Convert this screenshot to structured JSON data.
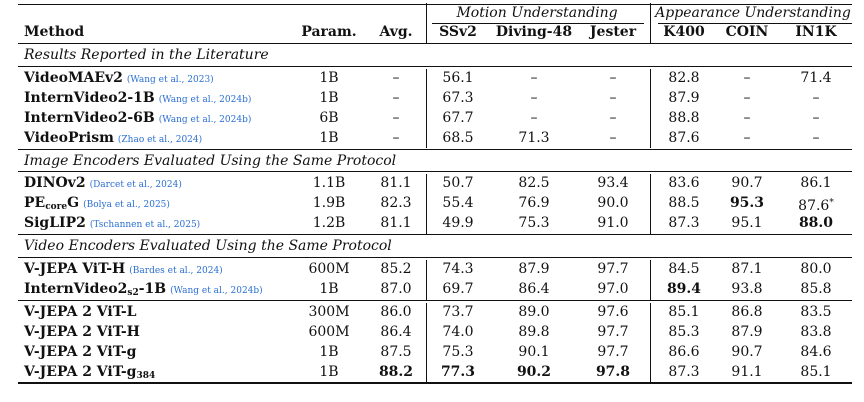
{
  "header": {
    "group_motion": "Motion Understanding",
    "group_appearance": "Appearance Understanding",
    "columns": [
      "Method",
      "Param.",
      "Avg.",
      "SSv2",
      "Diving-48",
      "Jester",
      "K400",
      "COIN",
      "IN1K"
    ]
  },
  "sections": [
    {
      "title": "Results Reported in the Literature",
      "rows": [
        {
          "name": "VideoMAEv2",
          "cite": "(Wang et al., 2023)",
          "cells": [
            "1B",
            "–",
            "56.1",
            "–",
            "–",
            "82.8",
            "–",
            "71.4"
          ]
        },
        {
          "name": "InternVideo2-1B",
          "cite": "(Wang et al., 2024b)",
          "cells": [
            "1B",
            "–",
            "67.3",
            "–",
            "–",
            "87.9",
            "–",
            "–"
          ]
        },
        {
          "name": "InternVideo2-6B",
          "cite": "(Wang et al., 2024b)",
          "cells": [
            "6B",
            "–",
            "67.7",
            "–",
            "–",
            "88.8",
            "–",
            "–"
          ]
        },
        {
          "name": "VideoPrism",
          "cite": "(Zhao et al., 2024)",
          "cells": [
            "1B",
            "–",
            "68.5",
            "71.3",
            "–",
            "87.6",
            "–",
            "–"
          ]
        }
      ]
    },
    {
      "title": "Image Encoders Evaluated Using the Same Protocol",
      "rows": [
        {
          "name": "DINOv2",
          "cite": "(Darcet et al., 2024)",
          "cells": [
            "1.1B",
            "81.1",
            "50.7",
            "82.5",
            "93.4",
            "83.6",
            "90.7",
            "86.1"
          ]
        },
        {
          "name": "PE",
          "sub": "core",
          "name_after": "G",
          "cite": "(Bolya et al., 2025)",
          "cells": [
            "1.9B",
            "82.3",
            "55.4",
            "76.9",
            "90.0",
            "88.5",
            "95.3",
            "87.6"
          ],
          "sup8": "*"
        },
        {
          "name": "SigLIP2",
          "cite": "(Tschannen et al., 2025)",
          "cells": [
            "1.2B",
            "81.1",
            "49.9",
            "75.3",
            "91.0",
            "87.3",
            "95.1",
            "88.0"
          ]
        }
      ]
    },
    {
      "title": "Video Encoders Evaluated Using the Same Protocol",
      "rows": [
        {
          "name": "V-JEPA ViT-H",
          "cite": "(Bardes et al., 2024)",
          "cells": [
            "600M",
            "85.2",
            "74.3",
            "87.9",
            "97.7",
            "84.5",
            "87.1",
            "80.0"
          ]
        },
        {
          "name": "InternVideo2",
          "sub": "s2",
          "name_after": "-1B",
          "cite": "(Wang et al., 2024b)",
          "cells": [
            "1B",
            "87.0",
            "69.7",
            "86.4",
            "97.0",
            "89.4",
            "93.8",
            "85.8"
          ]
        }
      ]
    },
    {
      "title": "",
      "rows": [
        {
          "name": "V-JEPA 2 ViT-L",
          "cite": "",
          "cells": [
            "300M",
            "86.0",
            "73.7",
            "89.0",
            "97.6",
            "85.1",
            "86.8",
            "83.5"
          ]
        },
        {
          "name": "V-JEPA 2 ViT-H",
          "cite": "",
          "cells": [
            "600M",
            "86.4",
            "74.0",
            "89.8",
            "97.7",
            "85.3",
            "87.9",
            "83.8"
          ]
        },
        {
          "name": "V-JEPA 2 ViT-g",
          "cite": "",
          "cells": [
            "1B",
            "87.5",
            "75.3",
            "90.1",
            "97.7",
            "86.6",
            "90.7",
            "84.6"
          ]
        },
        {
          "name": "V-JEPA 2 ViT-g",
          "sub": "384",
          "name_after": "",
          "cite": "",
          "cells": [
            "1B",
            "88.2",
            "77.3",
            "90.2",
            "97.8",
            "87.3",
            "91.1",
            "85.1"
          ]
        }
      ]
    }
  ]
}
